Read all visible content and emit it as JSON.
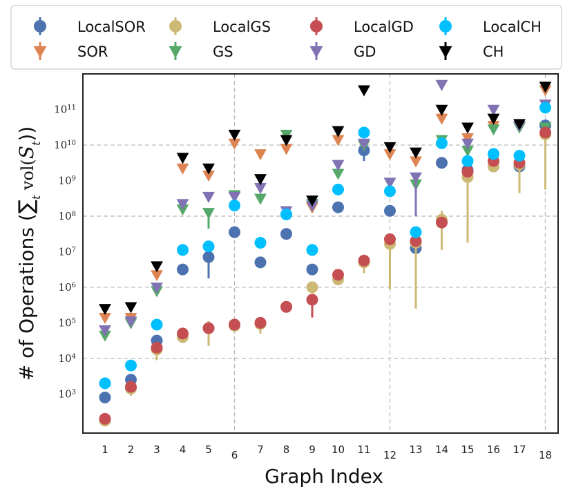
{
  "chart_data": {
    "type": "scatter",
    "title": "",
    "xlabel": "Graph Index",
    "ylabel": "# of Operations (∑t vol(St))",
    "ylabel_parts": {
      "prefix": "# of Operations (",
      "sum_symbol": "∑",
      "sum_subscript": "t",
      "vol": " vol(",
      "set": "S",
      "set_subscript": "t",
      "suffix": "))"
    },
    "x": [
      1,
      2,
      3,
      4,
      5,
      6,
      7,
      8,
      9,
      10,
      11,
      12,
      13,
      14,
      15,
      16,
      17,
      18
    ],
    "x_tick_labels": [
      "1",
      "2",
      "3",
      "4",
      "5",
      "6",
      "7",
      "8",
      "9",
      "10",
      "11",
      "12",
      "13",
      "14",
      "15",
      "16",
      "17",
      "18"
    ],
    "log_y_range": [
      1.9,
      12.0
    ],
    "y_ticks": [
      {
        "exp": 3,
        "base": "10",
        "sup": "3"
      },
      {
        "exp": 4,
        "base": "10",
        "sup": "4"
      },
      {
        "exp": 5,
        "base": "10",
        "sup": "5"
      },
      {
        "exp": 6,
        "base": "10",
        "sup": "6"
      },
      {
        "exp": 7,
        "base": "10",
        "sup": "7"
      },
      {
        "exp": 8,
        "base": "10",
        "sup": "8"
      },
      {
        "exp": 9,
        "base": "10",
        "sup": "9"
      },
      {
        "exp": 10,
        "base": "10",
        "sup": "10"
      },
      {
        "exp": 11,
        "base": "10",
        "sup": "11"
      }
    ],
    "grid": {
      "horizontal_exponents": [
        4,
        6,
        8,
        10
      ],
      "vertical_x": [
        6,
        12,
        18
      ],
      "style": "dashed"
    },
    "legend": {
      "placement": "top",
      "columns": 4
    },
    "series": [
      {
        "name": "LocalSOR",
        "marker": "circle",
        "color": "#4c72b0",
        "log_values": [
          2.9,
          3.4,
          4.5,
          6.5,
          6.85,
          7.55,
          6.7,
          7.5,
          6.5,
          8.25,
          9.85,
          8.15,
          7.1,
          9.5,
          9.3,
          9.4,
          9.4,
          10.55
        ],
        "log_err_low": [
          null,
          null,
          null,
          null,
          6.25,
          null,
          null,
          null,
          null,
          null,
          9.55,
          null,
          null,
          null,
          null,
          null,
          null,
          null
        ],
        "log_err_high": [
          null,
          null,
          null,
          null,
          null,
          null,
          null,
          null,
          null,
          null,
          10.05,
          null,
          null,
          null,
          null,
          null,
          null,
          null
        ]
      },
      {
        "name": "SOR",
        "marker": "triangle-down",
        "color": "#dd8452",
        "log_values": [
          5.15,
          5.15,
          6.35,
          9.35,
          9.15,
          10.05,
          9.75,
          9.9,
          8.25,
          10.15,
          11.55,
          9.75,
          9.55,
          10.75,
          10.2,
          10.55,
          10.55,
          11.55
        ],
        "log_err_low": [
          null,
          null,
          null,
          null,
          null,
          null,
          null,
          null,
          null,
          null,
          null,
          null,
          null,
          null,
          null,
          null,
          null,
          null
        ],
        "log_err_high": [
          null,
          null,
          null,
          null,
          null,
          null,
          null,
          null,
          null,
          null,
          null,
          null,
          null,
          null,
          null,
          null,
          null,
          null
        ]
      },
      {
        "name": "LocalGS",
        "marker": "circle",
        "color": "#ccb974",
        "log_values": [
          2.25,
          3.15,
          4.25,
          4.6,
          4.85,
          4.92,
          4.97,
          5.45,
          6.0,
          6.22,
          6.7,
          7.22,
          7.25,
          7.9,
          9.1,
          9.4,
          9.45,
          10.3
        ],
        "log_err_low": [
          null,
          2.95,
          3.95,
          4.45,
          4.35,
          null,
          4.7,
          null,
          null,
          null,
          6.4,
          5.95,
          5.4,
          7.05,
          7.25,
          9.25,
          8.65,
          8.75
        ],
        "log_err_high": [
          null,
          null,
          4.4,
          null,
          5.05,
          null,
          null,
          null,
          null,
          null,
          null,
          7.5,
          null,
          8.15,
          null,
          null,
          9.7,
          10.5
        ]
      },
      {
        "name": "GS",
        "marker": "triangle-down",
        "color": "#55a868",
        "log_values": [
          4.65,
          5.0,
          5.9,
          8.2,
          8.1,
          8.6,
          8.5,
          10.3,
          8.35,
          9.2,
          10.0,
          8.95,
          8.9,
          10.15,
          9.85,
          10.45,
          10.5,
          10.5
        ],
        "log_err_low": [
          null,
          null,
          null,
          null,
          7.65,
          null,
          null,
          null,
          null,
          null,
          null,
          null,
          null,
          null,
          null,
          null,
          null,
          null
        ],
        "log_err_high": [
          null,
          null,
          null,
          null,
          null,
          null,
          null,
          null,
          null,
          null,
          null,
          null,
          null,
          null,
          null,
          null,
          null,
          null
        ]
      },
      {
        "name": "LocalGD",
        "marker": "circle",
        "color": "#c44e52",
        "log_values": [
          2.3,
          3.2,
          4.3,
          4.7,
          4.85,
          4.95,
          5.0,
          5.45,
          5.65,
          6.35,
          6.75,
          7.35,
          7.3,
          7.82,
          9.25,
          9.55,
          9.5,
          10.35
        ],
        "log_err_low": [
          null,
          null,
          null,
          null,
          null,
          null,
          null,
          null,
          5.15,
          null,
          null,
          null,
          null,
          null,
          null,
          null,
          null,
          null
        ],
        "log_err_high": [
          null,
          null,
          null,
          null,
          null,
          null,
          null,
          null,
          null,
          null,
          null,
          null,
          null,
          null,
          null,
          null,
          null,
          null
        ]
      },
      {
        "name": "GD",
        "marker": "triangle-down",
        "color": "#8172b3",
        "log_values": [
          4.8,
          5.05,
          6.0,
          8.35,
          8.55,
          8.55,
          8.8,
          8.15,
          8.3,
          9.45,
          10.05,
          8.95,
          9.1,
          11.7,
          10.05,
          11.0,
          10.55,
          11.15
        ],
        "log_err_low": [
          null,
          null,
          null,
          null,
          null,
          null,
          null,
          null,
          null,
          null,
          null,
          null,
          8.0,
          null,
          null,
          null,
          null,
          null
        ],
        "log_err_high": [
          null,
          null,
          null,
          null,
          null,
          null,
          null,
          null,
          null,
          null,
          null,
          null,
          null,
          null,
          null,
          null,
          null,
          null
        ]
      },
      {
        "name": "LocalCH",
        "marker": "circle",
        "color": "#00bfff",
        "log_values": [
          3.3,
          3.8,
          4.95,
          7.05,
          7.15,
          8.3,
          7.25,
          8.05,
          7.05,
          8.75,
          10.35,
          8.7,
          7.55,
          10.05,
          9.55,
          9.75,
          9.7,
          11.05
        ],
        "log_err_low": [
          null,
          null,
          null,
          null,
          null,
          null,
          null,
          null,
          null,
          null,
          null,
          null,
          null,
          null,
          null,
          null,
          null,
          null
        ],
        "log_err_high": [
          null,
          null,
          null,
          null,
          null,
          null,
          null,
          null,
          null,
          null,
          null,
          null,
          null,
          null,
          null,
          null,
          null,
          null
        ]
      },
      {
        "name": "CH",
        "marker": "triangle-down",
        "color": "#000000",
        "log_values": [
          5.4,
          5.45,
          6.6,
          9.65,
          9.35,
          10.3,
          9.05,
          10.15,
          8.45,
          10.4,
          11.55,
          9.95,
          9.8,
          11.0,
          10.5,
          10.75,
          10.6,
          11.65
        ],
        "log_err_low": [
          null,
          null,
          null,
          null,
          null,
          null,
          null,
          null,
          null,
          null,
          null,
          null,
          null,
          null,
          null,
          null,
          null,
          null
        ],
        "log_err_high": [
          null,
          null,
          null,
          null,
          null,
          null,
          null,
          null,
          null,
          null,
          null,
          null,
          null,
          null,
          null,
          null,
          null,
          null
        ]
      }
    ]
  }
}
